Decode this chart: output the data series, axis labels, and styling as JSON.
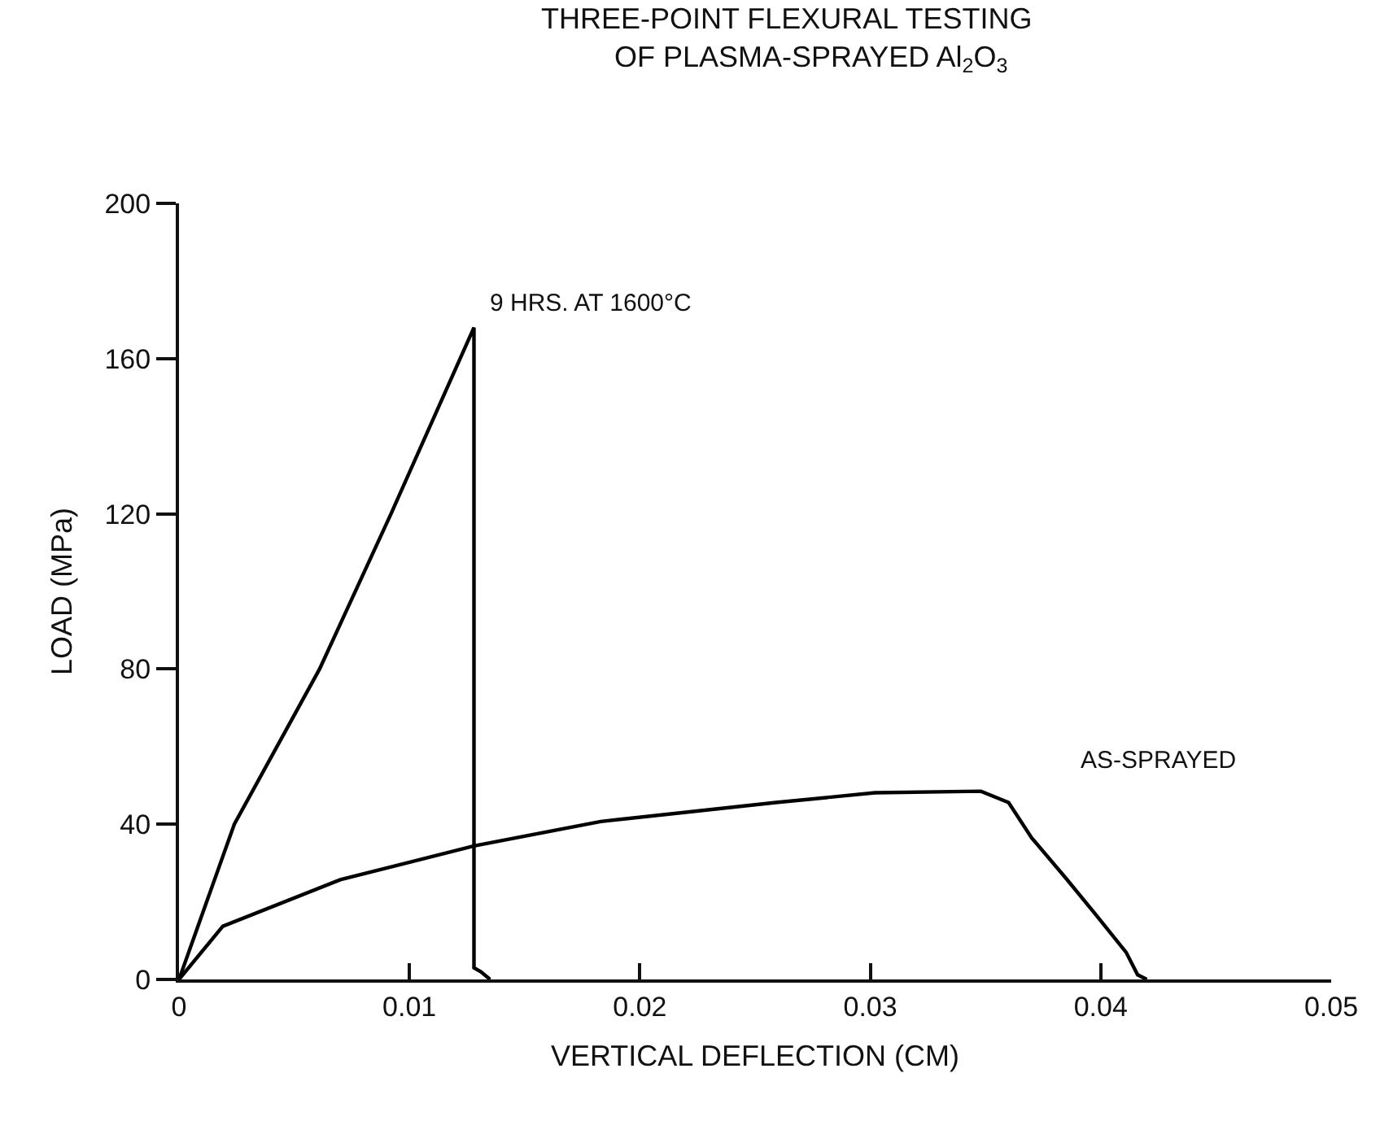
{
  "chart_data": {
    "type": "line",
    "title": "THREE-POINT FLEXURAL TESTING",
    "subtitle": "OF PLASMA-SPRAYED Al$_{2}$O$_{3}$",
    "xlabel": "VERTICAL DEFLECTION (CM)",
    "ylabel": "LOAD (MPa)",
    "series": [
      {
        "color": "#000000",
        "x": [
          0,
          0.0024,
          0.0061,
          0.0092,
          0.0128,
          0.0128,
          0.0131,
          0.0135
        ],
        "values": [
          0,
          40,
          80,
          120,
          168,
          3,
          2,
          0
        ]
      },
      {
        "color": "#000000",
        "x": [
          0,
          0.0019,
          0.007,
          0.0128,
          0.0183,
          0.0259,
          0.0302,
          0.0348,
          0.036,
          0.037,
          0.0385,
          0.0398,
          0.0411,
          0.0416,
          0.042
        ],
        "values": [
          0,
          13.7,
          25.7,
          34.4,
          40.7,
          45.6,
          48.1,
          48.5,
          45.6,
          36.5,
          26,
          16.6,
          7,
          1.2,
          0
        ]
      }
    ],
    "annotations": [
      {
        "text": "9 HRS. AT 1600°C",
        "x": 0.0128,
        "y": 168
      },
      "AS-SPRAYED"
    ],
    "xlim": [
      0,
      0.05
    ],
    "xticks": [
      0,
      0.01,
      0.02,
      0.03,
      0.04,
      0.05
    ],
    "ylim": [
      0,
      200
    ],
    "yticks": [
      0,
      40,
      80,
      120,
      160,
      200
    ],
    "marker": "none",
    "line_style": "solid"
  }
}
